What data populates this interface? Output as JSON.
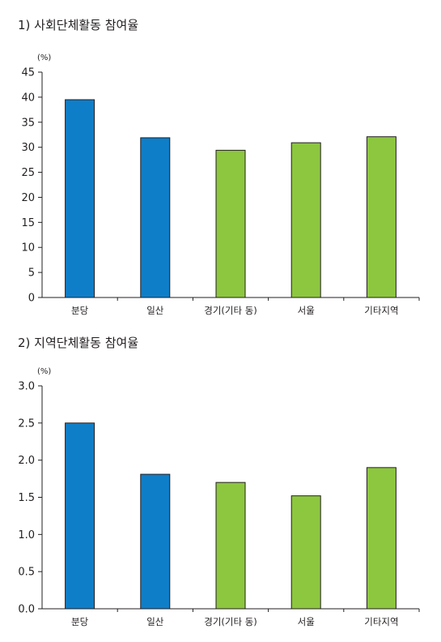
{
  "chart_data": [
    {
      "type": "bar",
      "title": "1) 사회단체활동 참여율",
      "unit": "(%)",
      "categories": [
        "분당",
        "일산",
        "경기(기타 동)",
        "서울",
        "기타지역"
      ],
      "values": [
        39.5,
        31.9,
        29.4,
        30.9,
        32.1
      ],
      "yticks": [
        "0",
        "5",
        "10",
        "15",
        "20",
        "25",
        "30",
        "35",
        "40",
        "45"
      ],
      "ylim": [
        0,
        45
      ],
      "bar_colors": [
        "#0f7ec8",
        "#0f7ec8",
        "#8dc63f",
        "#8dc63f",
        "#8dc63f"
      ],
      "grid": false
    },
    {
      "type": "bar",
      "title": "2) 지역단체활동 참여율",
      "unit": "(%)",
      "categories": [
        "분당",
        "일산",
        "경기(기타 동)",
        "서울",
        "기타지역"
      ],
      "values": [
        2.5,
        1.81,
        1.7,
        1.52,
        1.9
      ],
      "yticks": [
        "0.0",
        "0.5",
        "1.0",
        "1.5",
        "2.0",
        "2.5",
        "3.0"
      ],
      "ylim": [
        0,
        3.0
      ],
      "bar_colors": [
        "#0f7ec8",
        "#0f7ec8",
        "#8dc63f",
        "#8dc63f",
        "#8dc63f"
      ],
      "grid": false
    }
  ]
}
